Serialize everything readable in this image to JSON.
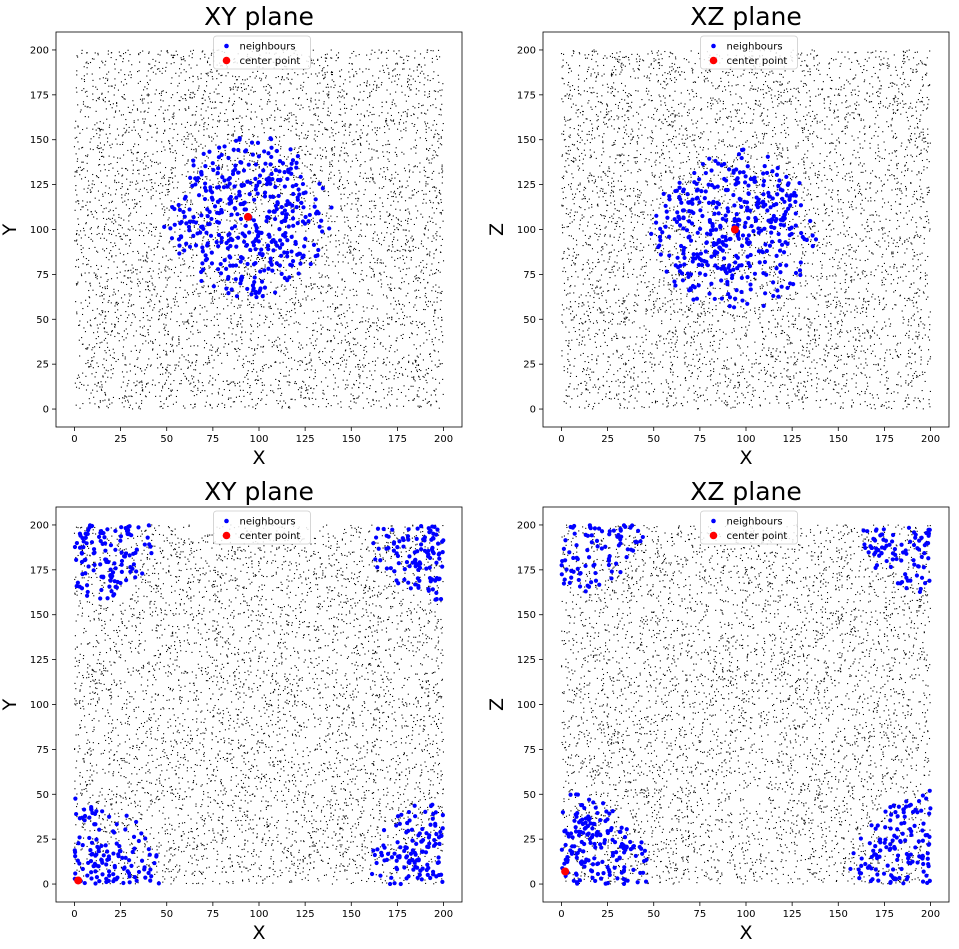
{
  "colors": {
    "background_points": "#000000",
    "neighbours": "#0000ff",
    "center_point": "#ff0000"
  },
  "chart_data": [
    {
      "type": "scatter",
      "title": "XY plane",
      "xlabel": "X",
      "ylabel": "Y",
      "xlim": [
        -10,
        210
      ],
      "ylim": [
        -10,
        210
      ],
      "xticks": [
        0,
        25,
        50,
        75,
        100,
        125,
        150,
        175,
        200
      ],
      "yticks": [
        0,
        25,
        50,
        75,
        100,
        125,
        150,
        175,
        200
      ],
      "grid": false,
      "legend": "top-center",
      "series": [
        {
          "name": "background",
          "color": "#000000",
          "distribution": "uniform",
          "x_range": [
            0,
            200
          ],
          "y_range": [
            0,
            200
          ],
          "approx_count": 5000
        },
        {
          "name": "neighbours",
          "color": "#0000ff",
          "distribution": "ball",
          "center": [
            94,
            107
          ],
          "radius": 46,
          "approx_count": 420
        },
        {
          "name": "center point",
          "color": "#ff0000",
          "points": [
            [
              94,
              107
            ]
          ]
        }
      ]
    },
    {
      "type": "scatter",
      "title": "XZ plane",
      "xlabel": "X",
      "ylabel": "Z",
      "xlim": [
        -10,
        210
      ],
      "ylim": [
        -10,
        210
      ],
      "xticks": [
        0,
        25,
        50,
        75,
        100,
        125,
        150,
        175,
        200
      ],
      "yticks": [
        0,
        25,
        50,
        75,
        100,
        125,
        150,
        175,
        200
      ],
      "grid": false,
      "legend": "top-center",
      "series": [
        {
          "name": "background",
          "color": "#000000",
          "distribution": "uniform",
          "x_range": [
            0,
            200
          ],
          "y_range": [
            0,
            200
          ],
          "approx_count": 5000
        },
        {
          "name": "neighbours",
          "color": "#0000ff",
          "distribution": "ball",
          "center": [
            94,
            100
          ],
          "radius": 46,
          "approx_count": 420
        },
        {
          "name": "center point",
          "color": "#ff0000",
          "points": [
            [
              94,
              100
            ]
          ]
        }
      ]
    },
    {
      "type": "scatter",
      "title": "XY plane",
      "xlabel": "X",
      "ylabel": "Y",
      "xlim": [
        -10,
        210
      ],
      "ylim": [
        -10,
        210
      ],
      "xticks": [
        0,
        25,
        50,
        75,
        100,
        125,
        150,
        175,
        200
      ],
      "yticks": [
        0,
        25,
        50,
        75,
        100,
        125,
        150,
        175,
        200
      ],
      "grid": false,
      "legend": "top-center",
      "series": [
        {
          "name": "background",
          "color": "#000000",
          "distribution": "uniform",
          "x_range": [
            0,
            200
          ],
          "y_range": [
            0,
            200
          ],
          "approx_count": 5000
        },
        {
          "name": "neighbours",
          "color": "#0000ff",
          "distribution": "periodic-ball",
          "center": [
            2,
            2
          ],
          "radius": 46,
          "period": 200,
          "approx_count": 480
        },
        {
          "name": "center point",
          "color": "#ff0000",
          "points": [
            [
              2,
              2
            ]
          ]
        }
      ]
    },
    {
      "type": "scatter",
      "title": "XZ plane",
      "xlabel": "X",
      "ylabel": "Z",
      "xlim": [
        -10,
        210
      ],
      "ylim": [
        -10,
        210
      ],
      "xticks": [
        0,
        25,
        50,
        75,
        100,
        125,
        150,
        175,
        200
      ],
      "yticks": [
        0,
        25,
        50,
        75,
        100,
        125,
        150,
        175,
        200
      ],
      "grid": false,
      "legend": "top-center",
      "series": [
        {
          "name": "background",
          "color": "#000000",
          "distribution": "uniform",
          "x_range": [
            0,
            200
          ],
          "y_range": [
            0,
            200
          ],
          "approx_count": 5000
        },
        {
          "name": "neighbours",
          "color": "#0000ff",
          "distribution": "periodic-ball",
          "center": [
            2,
            7
          ],
          "radius": 46,
          "period": 200,
          "approx_count": 480
        },
        {
          "name": "center point",
          "color": "#ff0000",
          "points": [
            [
              2,
              7
            ]
          ]
        }
      ]
    }
  ]
}
